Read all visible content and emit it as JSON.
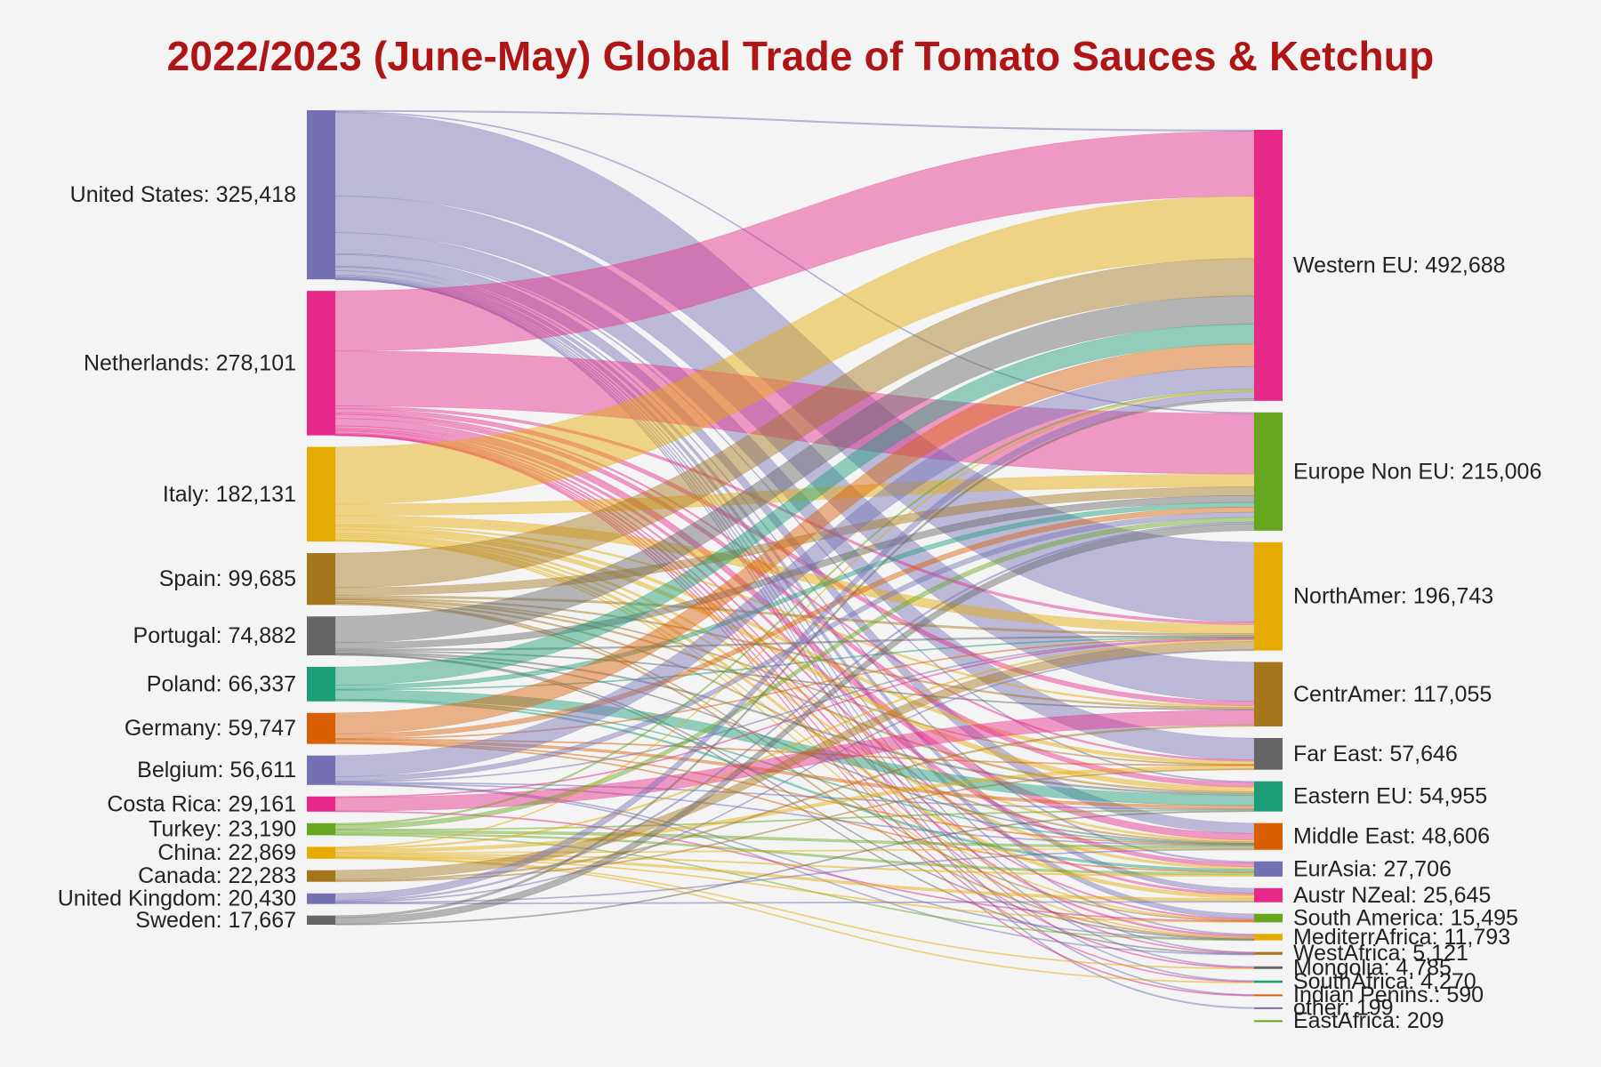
{
  "chart_data": {
    "type": "sankey",
    "title": "2022/2023 (June-May) Global Trade of Tomato Sauces & Ketchup",
    "sources": [
      {
        "name": "United States",
        "value": 325418,
        "label": "United States: 325,418",
        "color": "#7570b3"
      },
      {
        "name": "Netherlands",
        "value": 278101,
        "label": "Netherlands: 278,101",
        "color": "#e7298a"
      },
      {
        "name": "Italy",
        "value": 182131,
        "label": "Italy: 182,131",
        "color": "#e6ab02"
      },
      {
        "name": "Spain",
        "value": 99685,
        "label": "Spain: 99,685",
        "color": "#a6761d"
      },
      {
        "name": "Portugal",
        "value": 74882,
        "label": "Portugal: 74,882",
        "color": "#666666"
      },
      {
        "name": "Poland",
        "value": 66337,
        "label": "Poland: 66,337",
        "color": "#1b9e77"
      },
      {
        "name": "Germany",
        "value": 59747,
        "label": "Germany: 59,747",
        "color": "#d95f02"
      },
      {
        "name": "Belgium",
        "value": 56611,
        "label": "Belgium: 56,611",
        "color": "#7570b3"
      },
      {
        "name": "Costa Rica",
        "value": 29161,
        "label": "Costa Rica: 29,161",
        "color": "#e7298a"
      },
      {
        "name": "Turkey",
        "value": 23190,
        "label": "Turkey: 23,190",
        "color": "#66a61e"
      },
      {
        "name": "China",
        "value": 22869,
        "label": "China: 22,869",
        "color": "#e6ab02"
      },
      {
        "name": "Canada",
        "value": 22283,
        "label": "Canada: 22,283",
        "color": "#a6761d"
      },
      {
        "name": "United Kingdom",
        "value": 20430,
        "label": "United Kingdom: 20,430",
        "color": "#7570b3"
      },
      {
        "name": "Sweden",
        "value": 17667,
        "label": "Sweden: 17,667",
        "color": "#666666"
      }
    ],
    "targets": [
      {
        "name": "Western EU",
        "value": 492688,
        "label": "Western EU: 492,688",
        "color": "#e7298a"
      },
      {
        "name": "Europe Non EU",
        "value": 215006,
        "label": "Europe Non EU: 215,006",
        "color": "#66a61e"
      },
      {
        "name": "NorthAmer",
        "value": 196743,
        "label": "NorthAmer: 196,743",
        "color": "#e6ab02"
      },
      {
        "name": "CentrAmer",
        "value": 117055,
        "label": "CentrAmer: 117,055",
        "color": "#a6761d"
      },
      {
        "name": "Far East",
        "value": 57646,
        "label": "Far East: 57,646",
        "color": "#666666"
      },
      {
        "name": "Eastern EU",
        "value": 54955,
        "label": "Eastern EU: 54,955",
        "color": "#1b9e77"
      },
      {
        "name": "Middle East",
        "value": 48606,
        "label": "Middle East: 48,606",
        "color": "#d95f02"
      },
      {
        "name": "EurAsia",
        "value": 27706,
        "label": "EurAsia: 27,706",
        "color": "#7570b3"
      },
      {
        "name": "Austr NZeal",
        "value": 25645,
        "label": "Austr NZeal: 25,645",
        "color": "#e7298a"
      },
      {
        "name": "South America",
        "value": 15495,
        "label": "South America: 15,495",
        "color": "#66a61e"
      },
      {
        "name": "MediterrAfrica",
        "value": 11793,
        "label": "MediterrAfrica: 11,793",
        "color": "#e6ab02"
      },
      {
        "name": "WestAfrica",
        "value": 5121,
        "label": "WestAfrica: 5,121",
        "color": "#a6761d"
      },
      {
        "name": "Mongolia",
        "value": 4785,
        "label": "Mongolia: 4,785",
        "color": "#666666"
      },
      {
        "name": "SouthAfrica",
        "value": 4270,
        "label": "SouthAfrica: 4,270",
        "color": "#1b9e77"
      },
      {
        "name": "Indian Penins.",
        "value": 590,
        "label": "Indian Penins.: 590",
        "color": "#d95f02"
      },
      {
        "name": "other",
        "value": 199,
        "label": "other: 199",
        "color": "#7570b3"
      },
      {
        "name": "EastAfrica",
        "value": 209,
        "label": "EastAfrica: 209",
        "color": "#66a61e"
      }
    ],
    "links": [
      {
        "source": "United States",
        "target": "Western EU",
        "value": 2500
      },
      {
        "source": "United States",
        "target": "Europe Non EU",
        "value": 2000
      },
      {
        "source": "United States",
        "target": "NorthAmer",
        "value": 160000
      },
      {
        "source": "United States",
        "target": "CentrAmer",
        "value": 70000
      },
      {
        "source": "United States",
        "target": "Far East",
        "value": 40000
      },
      {
        "source": "United States",
        "target": "Eastern EU",
        "value": 2000
      },
      {
        "source": "United States",
        "target": "Middle East",
        "value": 22000
      },
      {
        "source": "United States",
        "target": "EurAsia",
        "value": 2000
      },
      {
        "source": "United States",
        "target": "Austr NZeal",
        "value": 7000
      },
      {
        "source": "United States",
        "target": "South America",
        "value": 8000
      },
      {
        "source": "United States",
        "target": "MediterrAfrica",
        "value": 3000
      },
      {
        "source": "United States",
        "target": "WestAfrica",
        "value": 1500
      },
      {
        "source": "United States",
        "target": "Mongolia",
        "value": 2000
      },
      {
        "source": "United States",
        "target": "SouthAfrica",
        "value": 1500
      },
      {
        "source": "United States",
        "target": "Indian Penins.",
        "value": 200
      },
      {
        "source": "United States",
        "target": "other",
        "value": 100
      },
      {
        "source": "Netherlands",
        "target": "Western EU",
        "value": 115000
      },
      {
        "source": "Netherlands",
        "target": "Europe Non EU",
        "value": 105000
      },
      {
        "source": "Netherlands",
        "target": "NorthAmer",
        "value": 5000
      },
      {
        "source": "Netherlands",
        "target": "CentrAmer",
        "value": 8000
      },
      {
        "source": "Netherlands",
        "target": "Far East",
        "value": 3000
      },
      {
        "source": "Netherlands",
        "target": "Eastern EU",
        "value": 8000
      },
      {
        "source": "Netherlands",
        "target": "Middle East",
        "value": 14000
      },
      {
        "source": "Netherlands",
        "target": "EurAsia",
        "value": 5000
      },
      {
        "source": "Netherlands",
        "target": "Austr NZeal",
        "value": 3000
      },
      {
        "source": "Netherlands",
        "target": "South America",
        "value": 2000
      },
      {
        "source": "Netherlands",
        "target": "MediterrAfrica",
        "value": 4000
      },
      {
        "source": "Netherlands",
        "target": "WestAfrica",
        "value": 2000
      },
      {
        "source": "Netherlands",
        "target": "Mongolia",
        "value": 1000
      },
      {
        "source": "Netherlands",
        "target": "SouthAfrica",
        "value": 1000
      },
      {
        "source": "Netherlands",
        "target": "Indian Penins.",
        "value": 100
      },
      {
        "source": "Italy",
        "target": "Western EU",
        "value": 110000
      },
      {
        "source": "Italy",
        "target": "Europe Non EU",
        "value": 22000
      },
      {
        "source": "Italy",
        "target": "NorthAmer",
        "value": 18000
      },
      {
        "source": "Italy",
        "target": "CentrAmer",
        "value": 3000
      },
      {
        "source": "Italy",
        "target": "Far East",
        "value": 6000
      },
      {
        "source": "Italy",
        "target": "Eastern EU",
        "value": 8000
      },
      {
        "source": "Italy",
        "target": "Middle East",
        "value": 4000
      },
      {
        "source": "Italy",
        "target": "EurAsia",
        "value": 3000
      },
      {
        "source": "Italy",
        "target": "Austr NZeal",
        "value": 5000
      },
      {
        "source": "Italy",
        "target": "South America",
        "value": 1000
      },
      {
        "source": "Italy",
        "target": "MediterrAfrica",
        "value": 2000
      },
      {
        "source": "Spain",
        "target": "Western EU",
        "value": 66000
      },
      {
        "source": "Spain",
        "target": "Europe Non EU",
        "value": 15000
      },
      {
        "source": "Spain",
        "target": "NorthAmer",
        "value": 4000
      },
      {
        "source": "Spain",
        "target": "CentrAmer",
        "value": 3000
      },
      {
        "source": "Spain",
        "target": "Far East",
        "value": 1000
      },
      {
        "source": "Spain",
        "target": "Eastern EU",
        "value": 3000
      },
      {
        "source": "Spain",
        "target": "Middle East",
        "value": 3000
      },
      {
        "source": "Spain",
        "target": "MediterrAfrica",
        "value": 3000
      },
      {
        "source": "Spain",
        "target": "South America",
        "value": 1000
      },
      {
        "source": "Portugal",
        "target": "Western EU",
        "value": 50000
      },
      {
        "source": "Portugal",
        "target": "Europe Non EU",
        "value": 12000
      },
      {
        "source": "Portugal",
        "target": "NorthAmer",
        "value": 3000
      },
      {
        "source": "Portugal",
        "target": "CentrAmer",
        "value": 2000
      },
      {
        "source": "Portugal",
        "target": "Eastern EU",
        "value": 3000
      },
      {
        "source": "Portugal",
        "target": "Middle East",
        "value": 1500
      },
      {
        "source": "Portugal",
        "target": "WestAfrica",
        "value": 1500
      },
      {
        "source": "Portugal",
        "target": "MediterrAfrica",
        "value": 1000
      },
      {
        "source": "Poland",
        "target": "Western EU",
        "value": 35000
      },
      {
        "source": "Poland",
        "target": "Europe Non EU",
        "value": 8000
      },
      {
        "source": "Poland",
        "target": "Eastern EU",
        "value": 18000
      },
      {
        "source": "Poland",
        "target": "EurAsia",
        "value": 3000
      },
      {
        "source": "Poland",
        "target": "NorthAmer",
        "value": 1000
      },
      {
        "source": "Poland",
        "target": "Middle East",
        "value": 1000
      },
      {
        "source": "Germany",
        "target": "Western EU",
        "value": 40000
      },
      {
        "source": "Germany",
        "target": "Europe Non EU",
        "value": 9000
      },
      {
        "source": "Germany",
        "target": "Eastern EU",
        "value": 5000
      },
      {
        "source": "Germany",
        "target": "NorthAmer",
        "value": 1500
      },
      {
        "source": "Germany",
        "target": "Middle East",
        "value": 1500
      },
      {
        "source": "Germany",
        "target": "EurAsia",
        "value": 1500
      },
      {
        "source": "Germany",
        "target": "Far East",
        "value": 1000
      },
      {
        "source": "Belgium",
        "target": "Western EU",
        "value": 40000
      },
      {
        "source": "Belgium",
        "target": "Europe Non EU",
        "value": 9000
      },
      {
        "source": "Belgium",
        "target": "Eastern EU",
        "value": 2000
      },
      {
        "source": "Belgium",
        "target": "Middle East",
        "value": 1500
      },
      {
        "source": "Belgium",
        "target": "NorthAmer",
        "value": 1500
      },
      {
        "source": "Belgium",
        "target": "WestAfrica",
        "value": 1000
      },
      {
        "source": "Belgium",
        "target": "MediterrAfrica",
        "value": 1000
      },
      {
        "source": "Costa Rica",
        "target": "CentrAmer",
        "value": 26000
      },
      {
        "source": "Costa Rica",
        "target": "NorthAmer",
        "value": 2000
      },
      {
        "source": "Costa Rica",
        "target": "South America",
        "value": 1000
      },
      {
        "source": "Turkey",
        "target": "Europe Non EU",
        "value": 8000
      },
      {
        "source": "Turkey",
        "target": "Middle East",
        "value": 5000
      },
      {
        "source": "Turkey",
        "target": "Western EU",
        "value": 3000
      },
      {
        "source": "Turkey",
        "target": "EurAsia",
        "value": 3000
      },
      {
        "source": "Turkey",
        "target": "Eastern EU",
        "value": 2000
      },
      {
        "source": "Turkey",
        "target": "MediterrAfrica",
        "value": 1000
      },
      {
        "source": "China",
        "target": "Far East",
        "value": 6000
      },
      {
        "source": "China",
        "target": "Austr NZeal",
        "value": 4000
      },
      {
        "source": "China",
        "target": "NorthAmer",
        "value": 3000
      },
      {
        "source": "China",
        "target": "EurAsia",
        "value": 2000
      },
      {
        "source": "China",
        "target": "Middle East",
        "value": 2000
      },
      {
        "source": "China",
        "target": "Mongolia",
        "value": 1500
      },
      {
        "source": "China",
        "target": "Western EU",
        "value": 1500
      },
      {
        "source": "China",
        "target": "South America",
        "value": 1000
      },
      {
        "source": "China",
        "target": "SouthAfrica",
        "value": 1000
      },
      {
        "source": "Canada",
        "target": "NorthAmer",
        "value": 17000
      },
      {
        "source": "Canada",
        "target": "CentrAmer",
        "value": 3000
      },
      {
        "source": "Canada",
        "target": "Far East",
        "value": 1500
      },
      {
        "source": "United Kingdom",
        "target": "Western EU",
        "value": 12000
      },
      {
        "source": "United Kingdom",
        "target": "Europe Non EU",
        "value": 3000
      },
      {
        "source": "United Kingdom",
        "target": "Middle East",
        "value": 1500
      },
      {
        "source": "United Kingdom",
        "target": "Austr NZeal",
        "value": 1500
      },
      {
        "source": "United Kingdom",
        "target": "NorthAmer",
        "value": 1000
      },
      {
        "source": "Sweden",
        "target": "Europe Non EU",
        "value": 12000
      },
      {
        "source": "Sweden",
        "target": "Western EU",
        "value": 4000
      },
      {
        "source": "Sweden",
        "target": "Eastern EU",
        "value": 1000
      }
    ]
  }
}
